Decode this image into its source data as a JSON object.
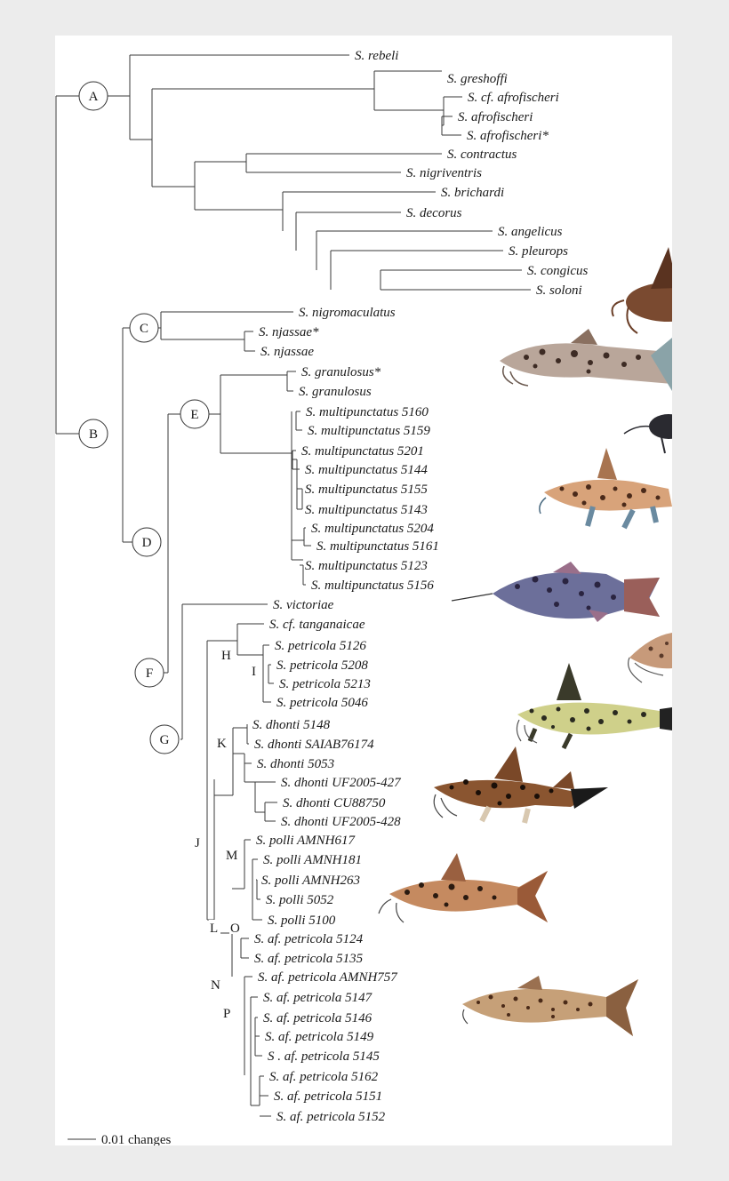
{
  "taxa": [
    "S. rebeli",
    "S. greshoffi",
    "S. cf. afrofischeri",
    "S. afrofischeri",
    "S. afrofischeri*",
    "S. contractus",
    "S. nigriventris",
    "S. brichardi",
    "S. decorus",
    "S. angelicus",
    "S. pleurops",
    "S. congicus",
    "S. soloni",
    "S. nigromaculatus",
    "S. njassae*",
    "S. njassae",
    "S. granulosus*",
    "S. granulosus",
    "S. multipunctatus 5160",
    "S. multipunctatus 5159",
    "S. multipunctatus 5201",
    "S. multipunctatus 5144",
    "S. multipunctatus 5155",
    "S. multipunctatus 5143",
    "S. multipunctatus 5204",
    "S. multipunctatus 5161",
    "S. multipunctatus 5123",
    "S. multipunctatus 5156",
    "S. victoriae",
    "S. cf. tanganaicae",
    "S. petricola 5126",
    "S. petricola 5208",
    "S. petricola 5213",
    "S. petricola 5046",
    "S. dhonti 5148",
    "S. dhonti SAIAB76174",
    "S. dhonti 5053",
    "S. dhonti UF2005-427",
    "S. dhonti CU88750",
    "S. dhonti UF2005-428",
    "S. polli AMNH617",
    "S. polli AMNH181",
    "S. polli AMNH263",
    "S. polli 5052",
    "S. polli 5100",
    "S. af. petricola 5124",
    "S. af. petricola 5135",
    "S. af. petricola AMNH757",
    "S. af. petricola 5147",
    "S. af. petricola 5146",
    "S. af. petricola 5149",
    "S . af. petricola 5145",
    "S. af. petricola 5162",
    "S. af. petricola 5151",
    "S. af. petricola 5152"
  ],
  "clade_labels": [
    "A",
    "B",
    "C",
    "D",
    "E",
    "F",
    "G",
    "H",
    "I",
    "J",
    "K",
    "L",
    "M",
    "N",
    "O",
    "P"
  ],
  "scale_bar_label": "0.01 changes",
  "colors": {
    "branch": "#3a3a3a",
    "background": "#ffffff",
    "frame": "#ececec"
  },
  "fish_icons": [
    "catfish-brown-icon",
    "catfish-spotted-grey-icon",
    "catfish-dark-head-icon",
    "catfish-tan-spotted-icon",
    "catfish-blue-spotted-icon",
    "catfish-partial-spotted-icon",
    "catfish-yellow-black-icon",
    "catfish-brown-black-spots-icon",
    "catfish-orange-spotted-icon",
    "catfish-tan-small-spots-icon"
  ]
}
